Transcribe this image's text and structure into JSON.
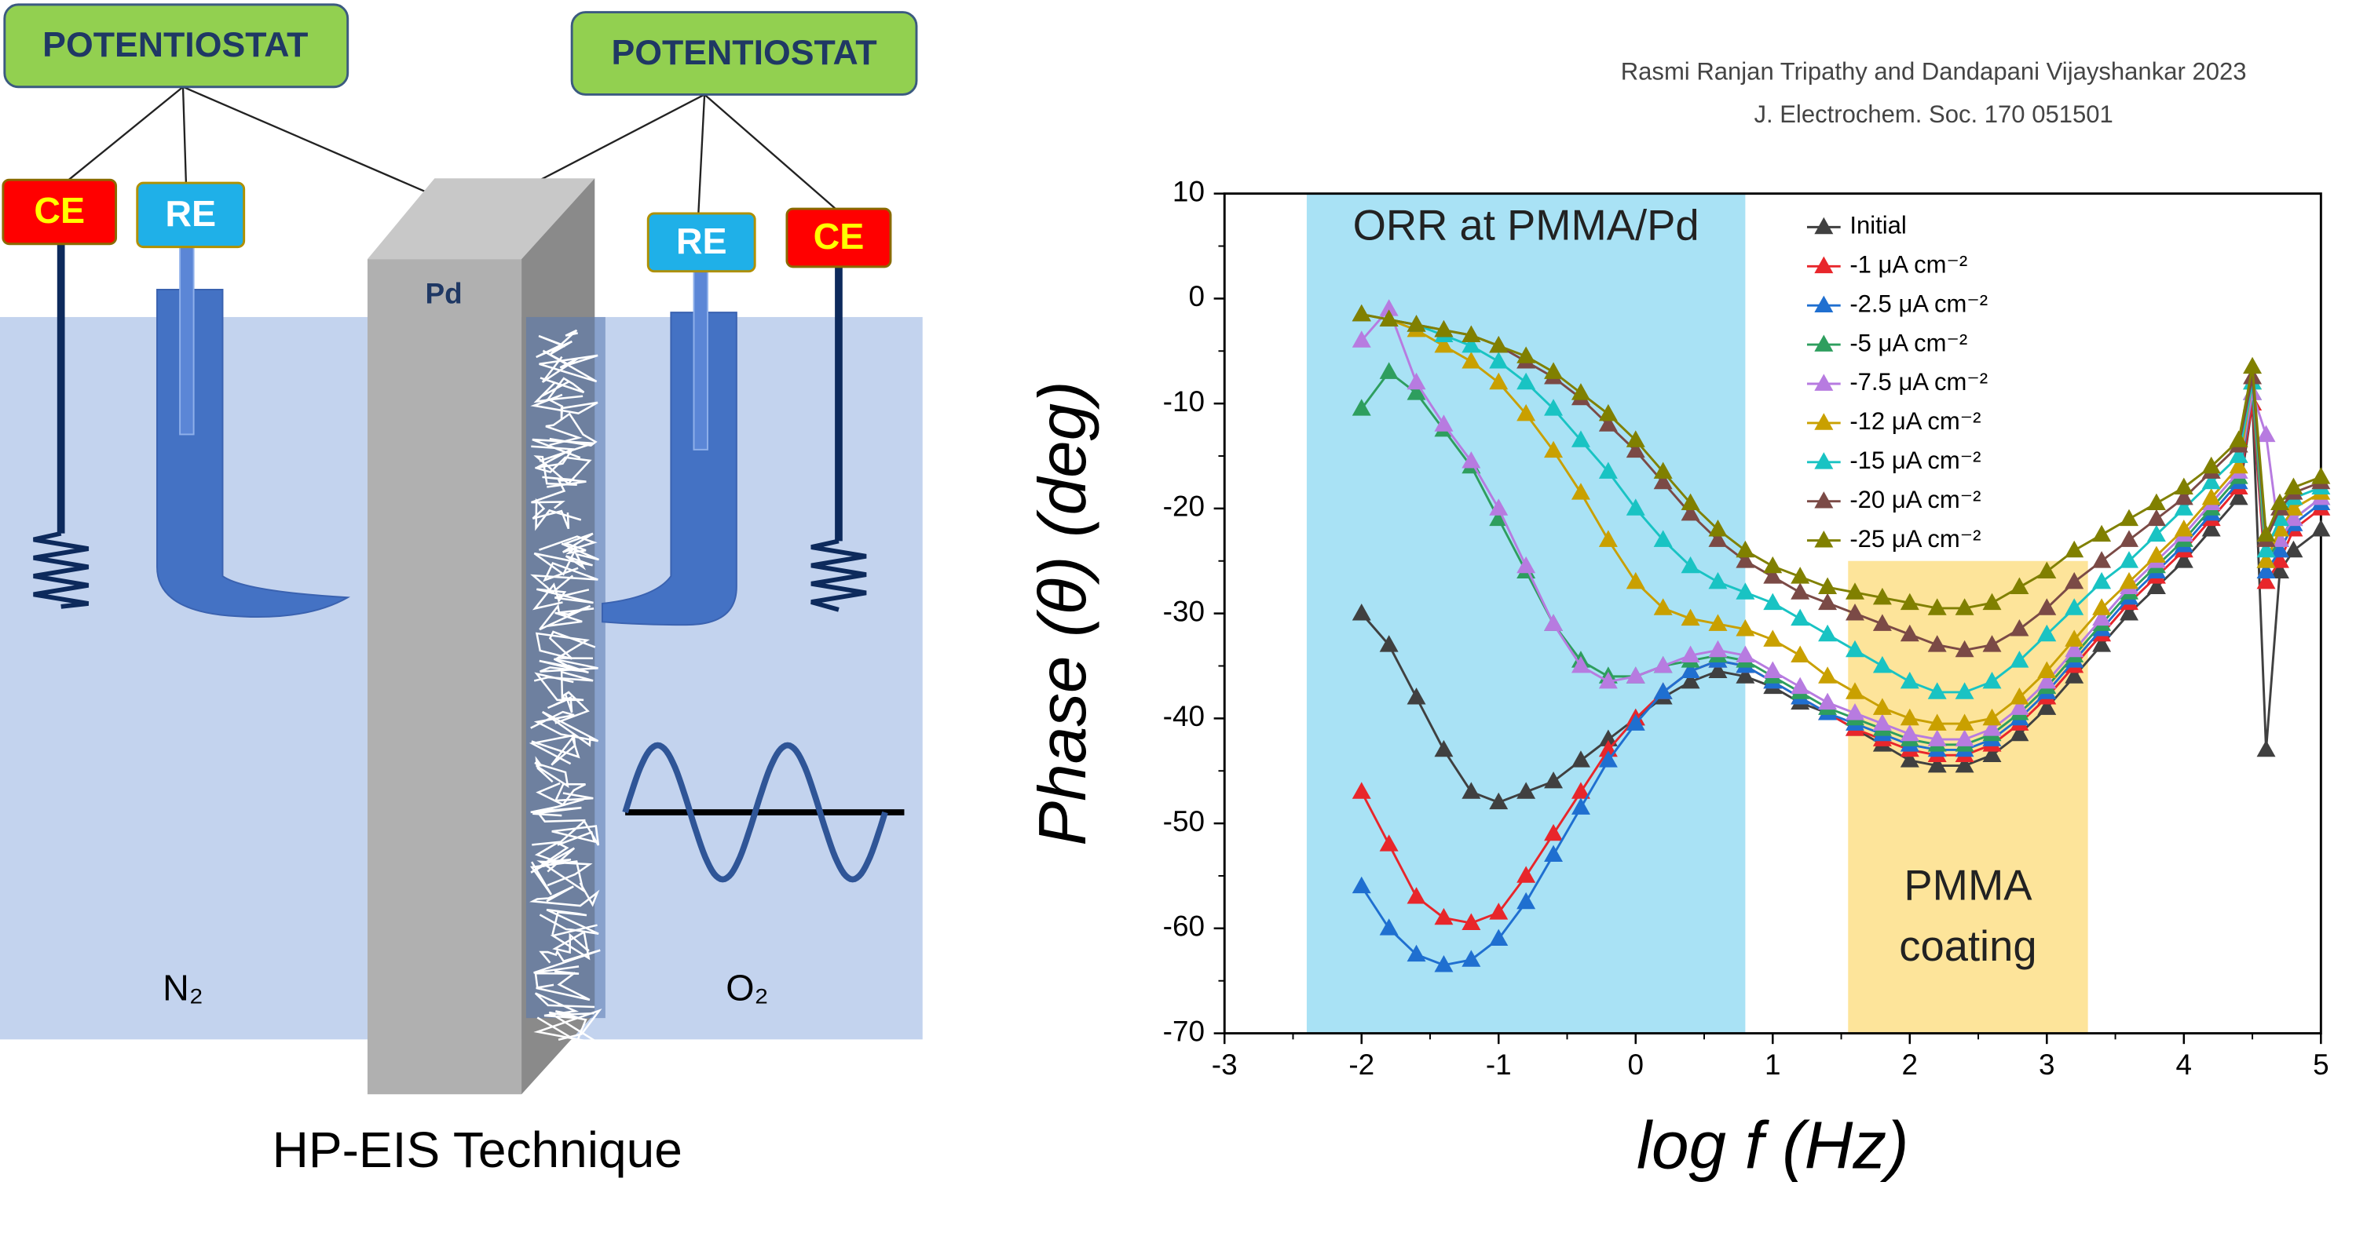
{
  "diagram": {
    "potentiostats": [
      "POTENTIOSTAT",
      "POTENTIOSTAT"
    ],
    "left_electrodes": [
      "CE",
      "RE"
    ],
    "right_electrodes": [
      "RE",
      "CE"
    ],
    "working_electrode": "Pd",
    "gases": [
      "N₂",
      "O₂"
    ],
    "caption": "HP-EIS Technique"
  },
  "citation": [
    "Rasmi Ranjan Tripathy and Dandapani Vijayshankar 2023",
    "J. Electrochem. Soc. 170 051501"
  ],
  "chart_data": {
    "type": "line",
    "x_label": "log f (Hz)",
    "y_label": "Phase (θ) (deg)",
    "xlim": [
      -3,
      5
    ],
    "ylim": [
      -70,
      10
    ],
    "xticks": [
      -3,
      -2,
      -1,
      0,
      1,
      2,
      3,
      4,
      5
    ],
    "yticks": [
      -70,
      -60,
      -50,
      -40,
      -30,
      -20,
      -10,
      0,
      10
    ],
    "legend": "top-center",
    "marker": "triangle",
    "shaded_regions": [
      {
        "label_lines": [
          "ORR at PMMA/Pd"
        ],
        "xrange": [
          -2.4,
          0.8
        ],
        "yrange": [
          -70,
          10
        ],
        "color": "#a9e2f5"
      },
      {
        "label_lines": [
          "PMMA",
          "coating"
        ],
        "xrange": [
          1.55,
          3.3
        ],
        "yrange": [
          -70,
          -25
        ],
        "color": "#fde49a"
      }
    ],
    "x": [
      -2,
      -1.8,
      -1.6,
      -1.4,
      -1.2,
      -1,
      -0.8,
      -0.6,
      -0.4,
      -0.2,
      0,
      0.2,
      0.4,
      0.6,
      0.8,
      1,
      1.2,
      1.4,
      1.6,
      1.8,
      2,
      2.2,
      2.4,
      2.6,
      2.8,
      3,
      3.2,
      3.4,
      3.6,
      3.8,
      4,
      4.2,
      4.4,
      4.5,
      4.6,
      4.7,
      4.8,
      5
    ],
    "series": [
      {
        "name": "Initial",
        "color": "#404040",
        "values": [
          -30,
          -33,
          -38,
          -43,
          -47,
          -48,
          -47,
          -46,
          -44,
          -42,
          -40,
          -38,
          -36.5,
          -35.5,
          -36,
          -37,
          -38.5,
          -39.5,
          -41,
          -42.5,
          -44,
          -44.5,
          -44.5,
          -43.5,
          -41.5,
          -39,
          -36,
          -33,
          -30,
          -27.5,
          -25,
          -22,
          -19,
          -10,
          -43,
          -26,
          -24,
          -22
        ]
      },
      {
        "name": "-1 μA cm⁻²",
        "color": "#e8262b",
        "values": [
          -47,
          -52,
          -57,
          -59,
          -59.5,
          -58.5,
          -55,
          -51,
          -47,
          -43,
          -40,
          -37.5,
          -35.5,
          -34.5,
          -35,
          -36.5,
          -38,
          -39.5,
          -41,
          -42,
          -43,
          -43.5,
          -43.5,
          -42.5,
          -40.5,
          -38,
          -35,
          -32,
          -29,
          -26.5,
          -24,
          -21,
          -18,
          -10,
          -27,
          -25,
          -22,
          -20
        ]
      },
      {
        "name": "-2.5 μA cm⁻²",
        "color": "#1f6fd0",
        "values": [
          -56,
          -60,
          -62.5,
          -63.5,
          -63,
          -61,
          -57.5,
          -53,
          -48.5,
          -44,
          -40.5,
          -37.5,
          -35.5,
          -34.5,
          -35,
          -36.5,
          -38,
          -39.5,
          -40.5,
          -41.5,
          -42.5,
          -43,
          -43,
          -42,
          -40,
          -37.5,
          -34.5,
          -31.5,
          -28.5,
          -26,
          -23.5,
          -20.5,
          -17.5,
          -9,
          -26,
          -24,
          -21.5,
          -19.5
        ]
      },
      {
        "name": "-5 μA cm⁻²",
        "color": "#2e9e5e",
        "values": [
          -10.5,
          -7,
          -9,
          -12.5,
          -16,
          -21,
          -26,
          -31,
          -34.5,
          -36,
          -36,
          -35,
          -34.5,
          -34,
          -34.5,
          -36,
          -37.5,
          -39,
          -40,
          -41,
          -42,
          -42.5,
          -42.5,
          -41.5,
          -39.5,
          -37,
          -34,
          -31,
          -28,
          -25.5,
          -23,
          -20,
          -17,
          -9,
          -25,
          -23,
          -21,
          -19
        ]
      },
      {
        "name": "-7.5 μA cm⁻²",
        "color": "#b77be0",
        "values": [
          -4,
          -1,
          -8,
          -12,
          -15.5,
          -20,
          -25.5,
          -31,
          -35,
          -36.5,
          -36,
          -35,
          -34,
          -33.5,
          -34,
          -35.5,
          -37,
          -38.5,
          -39.5,
          -40.5,
          -41.5,
          -42,
          -42,
          -41,
          -39,
          -36.5,
          -33.5,
          -30.5,
          -27.5,
          -25,
          -22.5,
          -19.5,
          -16.5,
          -9,
          -13,
          -23,
          -21,
          -19
        ]
      },
      {
        "name": "-12 μA cm⁻²",
        "color": "#c9a000",
        "values": [
          -1.5,
          -2,
          -3,
          -4.5,
          -6,
          -8,
          -11,
          -14.5,
          -18.5,
          -23,
          -27,
          -29.5,
          -30.5,
          -31,
          -31.5,
          -32.5,
          -34,
          -36,
          -37.5,
          -39,
          -40,
          -40.5,
          -40.5,
          -40,
          -38,
          -35.5,
          -32.5,
          -29.5,
          -27,
          -24.5,
          -22,
          -19,
          -16,
          -8,
          -25,
          -22,
          -20,
          -18.5
        ]
      },
      {
        "name": "-15 μA cm⁻²",
        "color": "#19c3c3",
        "values": [
          -1.5,
          -2,
          -2.5,
          -3.5,
          -4.5,
          -6,
          -8,
          -10.5,
          -13.5,
          -16.5,
          -20,
          -23,
          -25.5,
          -27,
          -28,
          -29,
          -30.5,
          -32,
          -33.5,
          -35,
          -36.5,
          -37.5,
          -37.5,
          -36.5,
          -34.5,
          -32,
          -29.5,
          -27,
          -25,
          -22.5,
          -20,
          -17.5,
          -15,
          -8,
          -24,
          -21,
          -19,
          -18
        ]
      },
      {
        "name": "-20 μA cm⁻²",
        "color": "#7b4a46",
        "values": [
          -1.5,
          -2,
          -2.5,
          -3,
          -3.5,
          -4.5,
          -6,
          -7.5,
          -9.5,
          -12,
          -14.5,
          -17.5,
          -20.5,
          -23,
          -25,
          -26.5,
          -28,
          -29,
          -30,
          -31,
          -32,
          -33,
          -33.5,
          -33,
          -31.5,
          -29.5,
          -27,
          -25,
          -23,
          -21,
          -19,
          -16.5,
          -14,
          -7.5,
          -23,
          -20,
          -18.5,
          -17.5
        ]
      },
      {
        "name": "-25 μA cm⁻²",
        "color": "#808000",
        "values": [
          -1.5,
          -2,
          -2.5,
          -3,
          -3.5,
          -4.5,
          -5.5,
          -7,
          -9,
          -11,
          -13.5,
          -16.5,
          -19.5,
          -22,
          -24,
          -25.5,
          -26.5,
          -27.5,
          -28,
          -28.5,
          -29,
          -29.5,
          -29.5,
          -29,
          -27.5,
          -26,
          -24,
          -22.5,
          -21,
          -19.5,
          -18,
          -16,
          -13.5,
          -6.5,
          -22.5,
          -19.5,
          -18,
          -17
        ]
      }
    ]
  }
}
